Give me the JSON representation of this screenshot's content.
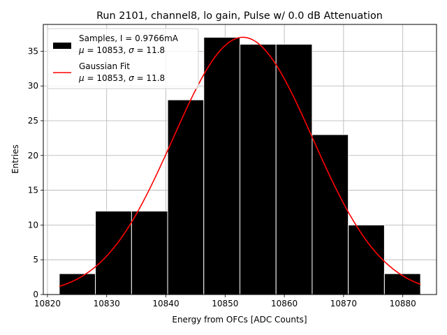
{
  "chart_data": {
    "type": "bar",
    "title": "Run 2101, channel8, lo gain, Pulse w/ 0.0 dB Attenuation",
    "xlabel": "Energy from OFCs [ADC Counts]",
    "ylabel": "Entries",
    "xlim": [
      10819.3,
      10885.7
    ],
    "ylim": [
      0,
      38.85
    ],
    "grid": true,
    "xticks": [
      10820,
      10830,
      10840,
      10850,
      10860,
      10870,
      10880
    ],
    "yticks": [
      0,
      5,
      10,
      15,
      20,
      25,
      30,
      35
    ],
    "histogram": {
      "name": "Samples, I = 0.9766mA",
      "stats": "μ = 10853, σ = 11.8",
      "color": "#000000",
      "edgecolor": "#ffffff",
      "bin_edges": [
        10822.0,
        10828.1,
        10834.2,
        10840.3,
        10846.4,
        10852.5,
        10858.6,
        10864.7,
        10870.8,
        10876.9,
        10883.0
      ],
      "counts": [
        3,
        12,
        12,
        28,
        37,
        36,
        36,
        23,
        10,
        3
      ]
    },
    "fit": {
      "name": "Gaussian Fit",
      "stats": "μ = 10853, σ = 11.8",
      "color": "#ff0000",
      "mu": 10853,
      "sigma": 11.8,
      "amplitude": 37,
      "x_range": [
        10822,
        10883
      ]
    },
    "legend": {
      "placement": "upper-left",
      "entries": [
        {
          "label": "Samples, I = 0.9766mA",
          "stats_prefix": "μ",
          "stats_mid": " = 10853, ",
          "stats_sigma": "σ",
          "stats_suffix": " = 11.8"
        },
        {
          "label": "Gaussian Fit",
          "stats_prefix": "μ",
          "stats_mid": " = 10853, ",
          "stats_sigma": "σ",
          "stats_suffix": " = 11.8"
        }
      ]
    }
  }
}
